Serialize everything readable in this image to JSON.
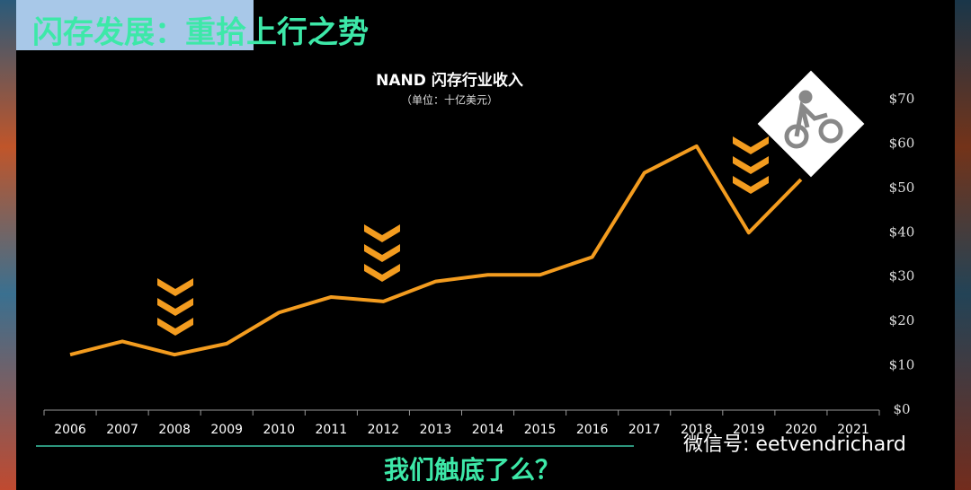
{
  "chart_data": {
    "type": "line",
    "slide_title": "闪存发展：重拾上行之势",
    "title": "NAND 闪存行业收入",
    "subtitle": "（单位：十亿美元）",
    "question": "我们触底了么？",
    "watermark": "微信号: eetvendrichard",
    "categories": [
      "2006",
      "2007",
      "2008",
      "2009",
      "2010",
      "2011",
      "2012",
      "2013",
      "2014",
      "2015",
      "2016",
      "2017",
      "2018",
      "2019",
      "2020",
      "2021"
    ],
    "series": [
      {
        "name": "NAND",
        "color": "#f39c1f",
        "values": [
          12.5,
          15.5,
          12.5,
          15,
          22,
          25.5,
          24.5,
          29,
          30.5,
          30.5,
          34.5,
          53.5,
          59.5,
          40,
          52,
          null
        ]
      }
    ],
    "ylim": [
      0,
      70
    ],
    "yticks": [
      {
        "value": 0,
        "label": "$0"
      },
      {
        "value": 10,
        "label": "$10"
      },
      {
        "value": 20,
        "label": "$20"
      },
      {
        "value": 30,
        "label": "$30"
      },
      {
        "value": 40,
        "label": "$40"
      },
      {
        "value": 50,
        "label": "$50"
      },
      {
        "value": 60,
        "label": "$60"
      },
      {
        "value": 70,
        "label": "$70"
      }
    ],
    "grid": false
  }
}
